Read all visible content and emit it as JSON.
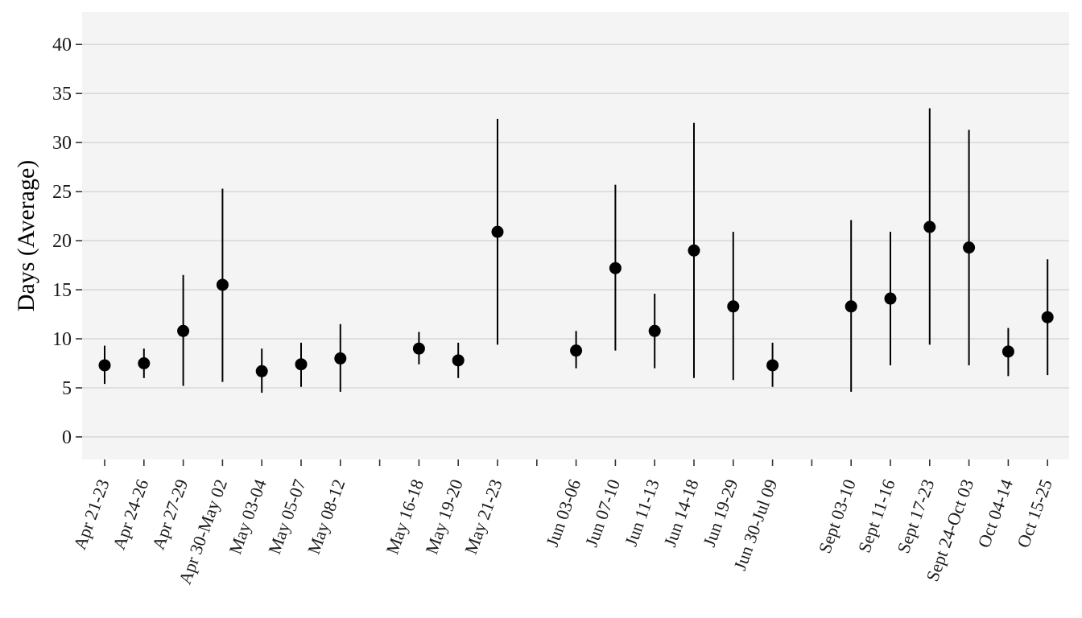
{
  "chart_data": {
    "type": "scatter",
    "title": "",
    "xlabel": "",
    "ylabel": "Days (Average)",
    "ylim": [
      -2.3,
      43.3
    ],
    "y_ticks": [
      "0",
      "5",
      "10",
      "15",
      "20",
      "25",
      "30",
      "35",
      "40"
    ],
    "grid": "horizontal",
    "categories": [
      "Apr 21-23",
      "Apr 24-26",
      "Apr 27-29",
      "Apr 30-May 02",
      "May 03-04",
      "May 05-07",
      "May 08-12",
      "",
      "May 16-18",
      "May 19-20",
      "May 21-23",
      "",
      "Jun 03-06",
      "Jun 07-10",
      "Jun 11-13",
      "Jun 14-18",
      "Jun 19-29",
      "Jun 30-Jul 09",
      "",
      "Sept 03-10",
      "Sept 11-16",
      "Sept 17-23",
      "Sept 24-Oct 03",
      "Oct 04-14",
      "Oct 15-25"
    ],
    "series": [
      {
        "values": [
          7.3,
          7.5,
          10.8,
          15.5,
          6.7,
          7.4,
          8.0,
          null,
          9.0,
          7.8,
          20.9,
          null,
          8.8,
          17.2,
          10.8,
          19.0,
          13.3,
          7.3,
          null,
          13.3,
          14.1,
          21.4,
          19.3,
          8.7,
          12.2
        ],
        "lower": [
          5.4,
          6.0,
          5.2,
          5.6,
          4.5,
          5.1,
          4.6,
          null,
          7.4,
          6.0,
          9.4,
          null,
          7.0,
          8.8,
          7.0,
          6.0,
          5.8,
          5.1,
          null,
          4.6,
          7.3,
          9.4,
          7.3,
          6.2,
          6.3
        ],
        "upper": [
          9.3,
          9.0,
          16.5,
          25.3,
          9.0,
          9.6,
          11.5,
          null,
          10.7,
          9.6,
          32.4,
          null,
          10.8,
          25.7,
          14.6,
          32.0,
          20.9,
          9.6,
          null,
          22.1,
          20.9,
          33.5,
          31.3,
          11.1,
          18.1
        ]
      }
    ],
    "colors": {
      "panel": "#f4f4f4",
      "grid": "#d9d9d9",
      "point": "#000000",
      "line": "#000000",
      "tick": "#333333"
    }
  }
}
